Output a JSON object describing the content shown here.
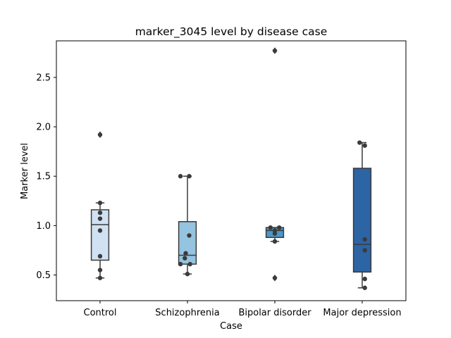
{
  "chart_data": {
    "type": "box",
    "title": "marker_3045 level by disease case",
    "xlabel": "Case",
    "ylabel": "Marker level",
    "ylim": [
      0.24,
      2.87
    ],
    "yticks": [
      0.5,
      1.0,
      1.5,
      2.0,
      2.5
    ],
    "ytick_labels": [
      "0.5",
      "1.0",
      "1.5",
      "2.0",
      "2.5"
    ],
    "categories": [
      "Control",
      "Schizophrenia",
      "Bipolar disorder",
      "Major depression"
    ],
    "box_colors": [
      "#d0e1f2",
      "#94c4df",
      "#4a98c9",
      "#2d64a4"
    ],
    "outline_color": "#3b3b3b",
    "point_color": "#3b3b3b",
    "grid": false,
    "boxes": [
      {
        "q1": 0.65,
        "median": 1.01,
        "q3": 1.16,
        "whisker_low": 0.47,
        "whisker_high": 1.23,
        "outliers": [
          1.92
        ]
      },
      {
        "q1": 0.61,
        "median": 0.7,
        "q3": 1.04,
        "whisker_low": 0.51,
        "whisker_high": 1.5,
        "outliers": []
      },
      {
        "q1": 0.88,
        "median": 0.95,
        "q3": 0.98,
        "whisker_low": 0.84,
        "whisker_high": 0.98,
        "outliers": [
          2.77,
          0.47
        ]
      },
      {
        "q1": 0.53,
        "median": 0.81,
        "q3": 1.58,
        "whisker_low": 0.37,
        "whisker_high": 1.84,
        "outliers": []
      }
    ],
    "points": [
      [
        {
          "x": 0.0,
          "y": 0.47
        },
        {
          "x": 0.0,
          "y": 0.55
        },
        {
          "x": 0.0,
          "y": 0.69
        },
        {
          "x": 0.0,
          "y": 0.95
        },
        {
          "x": 0.0,
          "y": 1.07
        },
        {
          "x": 0.0,
          "y": 1.13
        },
        {
          "x": 0.0,
          "y": 1.23
        },
        {
          "x": 0.0,
          "y": 1.92
        }
      ],
      {
        "_group": 1
      },
      {
        "_group": 2
      },
      {
        "_group": 3
      }
    ],
    "strip": [
      [
        {
          "dx": 0.0,
          "y": 0.47
        },
        {
          "dx": 0.0,
          "y": 0.55
        },
        {
          "dx": 0.0,
          "y": 0.69
        },
        {
          "dx": 0.0,
          "y": 0.95
        },
        {
          "dx": 0.0,
          "y": 1.07
        },
        {
          "dx": 0.0,
          "y": 1.13
        },
        {
          "dx": 0.0,
          "y": 1.23
        },
        {
          "dx": 0.0,
          "y": 1.92
        }
      ],
      [
        {
          "dx": -0.08,
          "y": 0.61
        },
        {
          "dx": 0.03,
          "y": 0.61
        },
        {
          "dx": -0.03,
          "y": 0.67
        },
        {
          "dx": -0.02,
          "y": 0.72
        },
        {
          "dx": 0.0,
          "y": 0.51
        },
        {
          "dx": 0.02,
          "y": 0.9
        },
        {
          "dx": -0.08,
          "y": 1.5
        },
        {
          "dx": 0.02,
          "y": 1.5
        }
      ],
      [
        {
          "dx": -0.05,
          "y": 0.98
        },
        {
          "dx": 0.0,
          "y": 0.95
        },
        {
          "dx": 0.05,
          "y": 0.98
        },
        {
          "dx": 0.0,
          "y": 0.92
        },
        {
          "dx": 0.0,
          "y": 0.84
        },
        {
          "dx": 0.0,
          "y": 0.47
        },
        {
          "dx": 0.0,
          "y": 2.77
        }
      ],
      [
        {
          "dx": -0.03,
          "y": 1.84
        },
        {
          "dx": 0.03,
          "y": 1.81
        },
        {
          "dx": 0.03,
          "y": 0.86
        },
        {
          "dx": 0.03,
          "y": 0.75
        },
        {
          "dx": 0.03,
          "y": 0.46
        },
        {
          "dx": 0.03,
          "y": 0.37
        }
      ]
    ]
  }
}
